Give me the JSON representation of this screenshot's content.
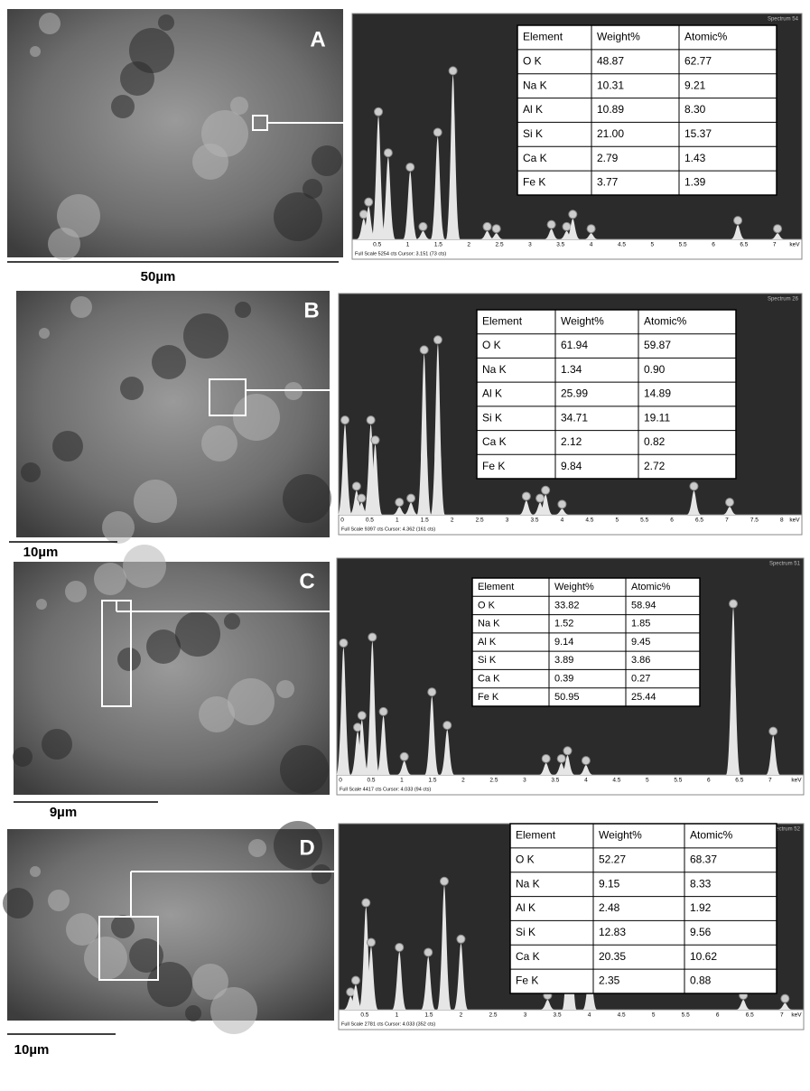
{
  "panels": [
    {
      "label": "A",
      "scale": "50µm",
      "spectrum": "Spectrum 54",
      "footer": "Full Scale 5254 cts Cursor: 3.151  (73 cts)",
      "axis": [
        "0.5",
        "1",
        "1.5",
        "2",
        "2.5",
        "3",
        "3.5",
        "4",
        "4.5",
        "5",
        "5.5",
        "6",
        "6.5",
        "7",
        "keV"
      ],
      "header": [
        "Element",
        "Weight%",
        "Atomic%"
      ],
      "rows": [
        [
          "O K",
          "48.87",
          "62.77"
        ],
        [
          "Na K",
          "10.31",
          "9.21"
        ],
        [
          "Al K",
          "10.89",
          "8.30"
        ],
        [
          "Si K",
          "21.00",
          "15.37"
        ],
        [
          "Ca K",
          "2.79",
          "1.43"
        ],
        [
          "Fe K",
          "3.77",
          "1.39"
        ]
      ]
    },
    {
      "label": "B",
      "scale": "10µm",
      "spectrum": "Spectrum 26",
      "footer": "Full Scale 9397 cts Cursor: 4.362  (161 cts)",
      "axis": [
        "0",
        "0.5",
        "1",
        "1.5",
        "2",
        "2.5",
        "3",
        "3.5",
        "4",
        "4.5",
        "5",
        "5.5",
        "6",
        "6.5",
        "7",
        "7.5",
        "8",
        "keV"
      ],
      "header": [
        "Element",
        "Weight%",
        "Atomic%"
      ],
      "rows": [
        [
          "O K",
          "61.94",
          "59.87"
        ],
        [
          "Na K",
          "1.34",
          "0.90"
        ],
        [
          "Al K",
          "25.99",
          "14.89"
        ],
        [
          "Si K",
          "34.71",
          "19.11"
        ],
        [
          "Ca K",
          "2.12",
          "0.82"
        ],
        [
          "Fe K",
          "9.84",
          "2.72"
        ]
      ]
    },
    {
      "label": "C",
      "scale": "9µm",
      "spectrum": "Spectrum 51",
      "footer": "Full Scale 4417 cts Cursor: 4.033  (94 cts)",
      "axis": [
        "0",
        "0.5",
        "1",
        "1.5",
        "2",
        "2.5",
        "3",
        "3.5",
        "4",
        "4.5",
        "5",
        "5.5",
        "6",
        "6.5",
        "7",
        "keV"
      ],
      "header": [
        "Element",
        "Weight%",
        "Atomic%"
      ],
      "rows": [
        [
          "O K",
          "33.82",
          "58.94"
        ],
        [
          "Na K",
          "1.52",
          "1.85"
        ],
        [
          "Al K",
          "9.14",
          "9.45"
        ],
        [
          "Si K",
          "3.89",
          "3.86"
        ],
        [
          "Ca K",
          "0.39",
          "0.27"
        ],
        [
          "Fe K",
          "50.95",
          "25.44"
        ]
      ]
    },
    {
      "label": "D",
      "scale": "10µm",
      "spectrum": "Spectrum 52",
      "footer": "Full Scale 2781 cts Cursor: 4.033  (352 cts)",
      "axis": [
        "0.5",
        "1",
        "1.5",
        "2",
        "2.5",
        "3",
        "3.5",
        "4",
        "4.5",
        "5",
        "5.5",
        "6",
        "6.5",
        "7",
        "keV"
      ],
      "header": [
        "Element",
        "Weight%",
        "Atomic%"
      ],
      "rows": [
        [
          "O K",
          "52.27",
          "68.37"
        ],
        [
          "Na K",
          "9.15",
          "8.33"
        ],
        [
          "Al K",
          "2.48",
          "1.92"
        ],
        [
          "Si K",
          "12.83",
          "9.56"
        ],
        [
          "Ca K",
          "20.35",
          "10.62"
        ],
        [
          "Fe K",
          "2.35",
          "0.88"
        ]
      ]
    }
  ]
}
